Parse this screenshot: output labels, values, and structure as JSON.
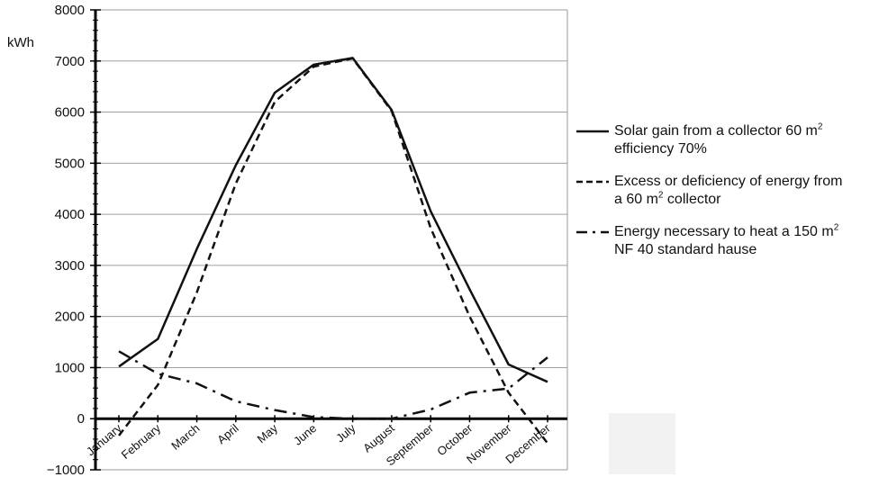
{
  "chart_data": {
    "type": "line",
    "ylabel": "kWh",
    "ylim": [
      -1000,
      8000
    ],
    "yticks": [
      -1000,
      0,
      1000,
      2000,
      3000,
      4000,
      5000,
      6000,
      7000,
      8000
    ],
    "ytick_labels": [
      "−1000",
      "0",
      "1000",
      "2000",
      "3000",
      "4000",
      "5000",
      "6000",
      "7000",
      "8000"
    ],
    "categories": [
      "January",
      "February",
      "March",
      "April",
      "May",
      "June",
      "July",
      "August",
      "September",
      "October",
      "November",
      "December"
    ],
    "grid": true,
    "legend_position": "right",
    "series": [
      {
        "name": "Solar gain from a collector 60 m2 efficiency 70%",
        "style": "solid",
        "values": [
          1020,
          1560,
          3320,
          4960,
          6380,
          6930,
          7060,
          6040,
          4060,
          2530,
          1060,
          720
        ]
      },
      {
        "name": "Excess or deficiency of energy from a 60 m2 collector",
        "style": "dashed",
        "values": [
          -330,
          660,
          2470,
          4600,
          6200,
          6890,
          7050,
          6020,
          3730,
          2000,
          510,
          -480
        ]
      },
      {
        "name": "Energy necessary to heat a 150 m2 NF 40 standard hause",
        "style": "dash-dot",
        "values": [
          1320,
          880,
          690,
          340,
          170,
          30,
          0,
          0,
          180,
          510,
          590,
          1200
        ]
      }
    ]
  },
  "legend": [
    {
      "line1": "Solar gain from a collector 60 m",
      "sup1": "2",
      "line2": "efficiency 70%",
      "sup2": ""
    },
    {
      "line1": "Excess  or deficiency of energy from",
      "sup1": "",
      "line2": "a 60 m",
      "sup2": "2",
      "line2_tail": " collector"
    },
    {
      "line1": "Energy necessary to heat a 150 m",
      "sup1": "2",
      "line2": "NF 40 standard hause",
      "sup2": ""
    }
  ],
  "colors": {
    "line": "#111111",
    "grid": "#a0a0a0",
    "frame": "#9a9a9a"
  }
}
